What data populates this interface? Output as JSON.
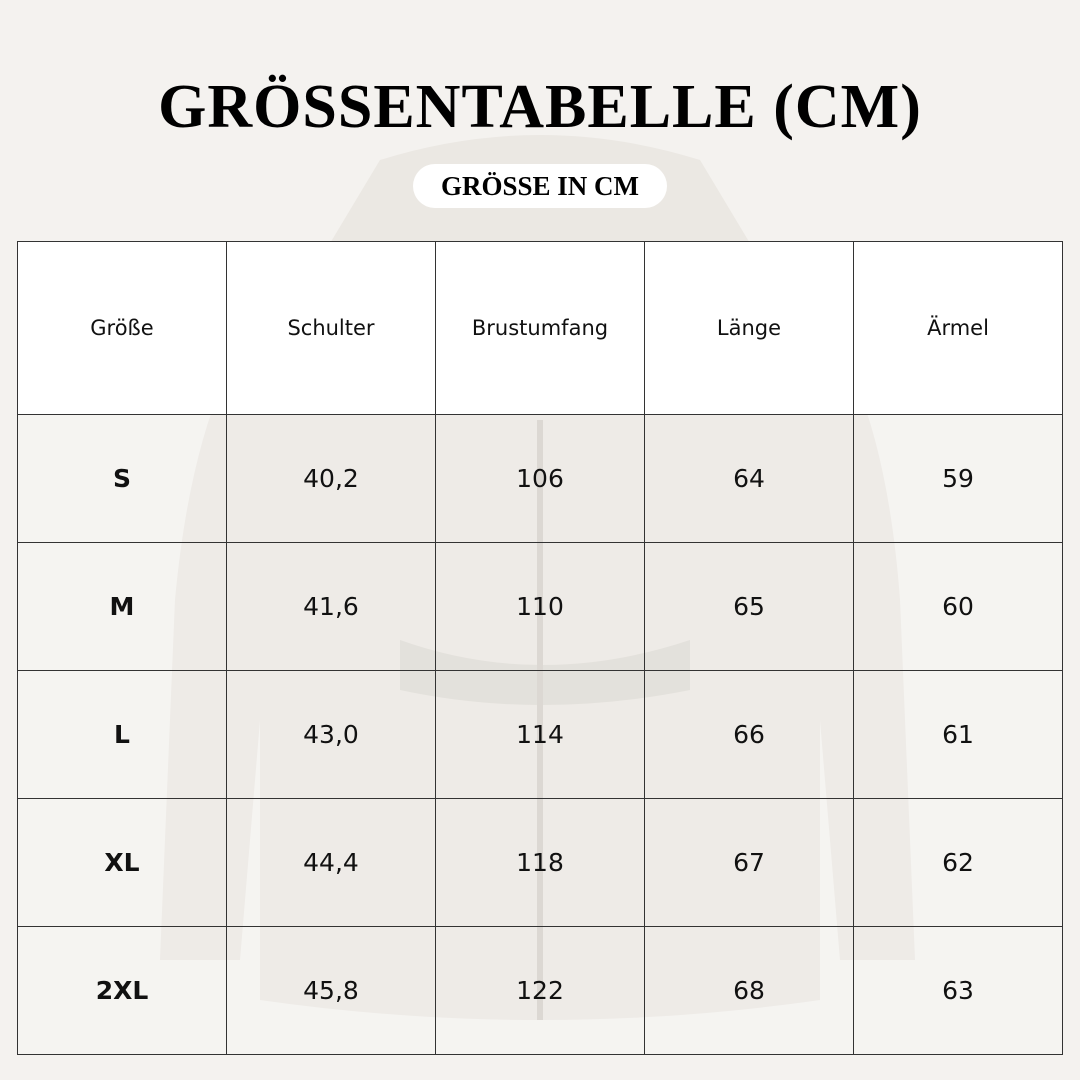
{
  "title": "GRÖSSENTABELLE (CM)",
  "subtitle": "GRÖSSE IN CM",
  "table": {
    "headers": [
      "Größe",
      "Schulter",
      "Brustumfang",
      "Länge",
      "Ärmel"
    ],
    "rows": [
      [
        "S",
        "40,2",
        "106",
        "64",
        "59"
      ],
      [
        "M",
        "41,6",
        "110",
        "65",
        "60"
      ],
      [
        "L",
        "43,0",
        "114",
        "66",
        "61"
      ],
      [
        "XL",
        "44,4",
        "118",
        "67",
        "62"
      ],
      [
        "2XL",
        "45,8",
        "122",
        "68",
        "63"
      ]
    ]
  }
}
